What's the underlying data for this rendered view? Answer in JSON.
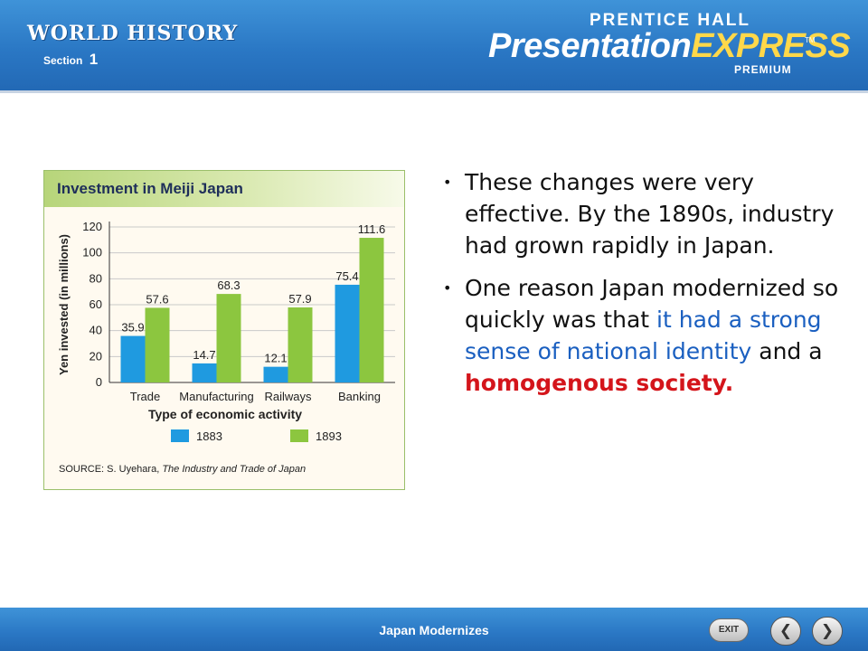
{
  "header": {
    "brand": "WORLD HISTORY",
    "section_label": "Section",
    "section_number": "1",
    "publisher": "PRENTICE HALL",
    "product_main": "Presentation",
    "product_accent": "EXPRESS",
    "trademark": "TM",
    "edition": "PREMIUM"
  },
  "slide": {
    "bullets": [
      {
        "segments": [
          {
            "text": "These changes were very effective. By the 1890s, industry had grown rapidly in Japan.",
            "style": "normal"
          }
        ]
      },
      {
        "segments": [
          {
            "text": "One reason Japan modernized so quickly was that ",
            "style": "normal"
          },
          {
            "text": "it had a strong sense of national identity",
            "style": "blue"
          },
          {
            "text": " and a ",
            "style": "normal"
          },
          {
            "text": "homogenous society.",
            "style": "red"
          }
        ]
      }
    ]
  },
  "chart_data": {
    "type": "bar",
    "title": "Investment in Meiji Japan",
    "xlabel": "Type of economic activity",
    "ylabel": "Yen invested (in millions)",
    "categories": [
      "Trade",
      "Manufacturing",
      "Railways",
      "Banking"
    ],
    "series": [
      {
        "name": "1883",
        "values": [
          35.9,
          14.7,
          12.1,
          75.4
        ],
        "color": "#1f9ae0"
      },
      {
        "name": "1893",
        "values": [
          57.6,
          68.3,
          57.9,
          111.6
        ],
        "color": "#8cc63f"
      }
    ],
    "ylim": [
      0,
      120
    ],
    "yticks": [
      0,
      20,
      40,
      60,
      80,
      100,
      120
    ],
    "grid": true,
    "legend": "bottom",
    "source_prefix": "SOURCE: S. Uyehara, ",
    "source_title": "The Industry and Trade of Japan"
  },
  "footer": {
    "title": "Japan Modernizes",
    "exit_label": "EXIT",
    "prev_glyph": "❮",
    "next_glyph": "❯"
  }
}
